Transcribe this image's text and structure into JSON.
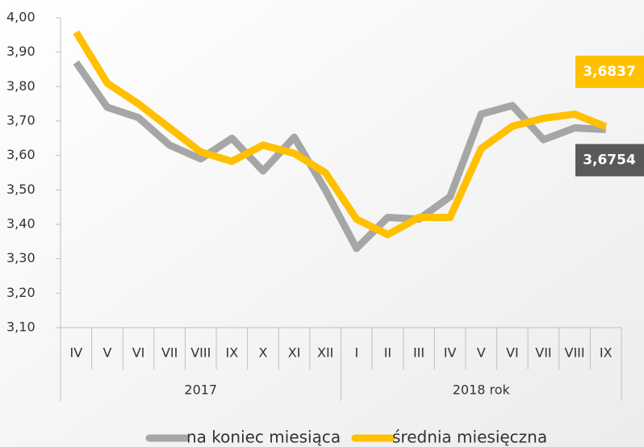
{
  "chart_data": {
    "type": "line",
    "categories": [
      "IV",
      "V",
      "VI",
      "VII",
      "VIII",
      "IX",
      "X",
      "XI",
      "XII",
      "I",
      "II",
      "III",
      "IV",
      "V",
      "VI",
      "VII",
      "VIII",
      "IX"
    ],
    "groups": [
      "2017",
      "2018 rok"
    ],
    "series": [
      {
        "name": "na koniec miesiąca",
        "color": "#a6a6a6",
        "values": [
          3.87,
          3.74,
          3.71,
          3.63,
          3.59,
          3.65,
          3.555,
          3.653,
          3.5,
          3.33,
          3.42,
          3.415,
          3.48,
          3.72,
          3.745,
          3.646,
          3.68,
          3.6754
        ],
        "value_labels": [
          null,
          null,
          null,
          null,
          null,
          null,
          null,
          null,
          null,
          null,
          null,
          null,
          null,
          null,
          null,
          null,
          null,
          "3,6754"
        ],
        "label_color": "#595959"
      },
      {
        "name": "średnia miesięczna",
        "color": "#ffc000",
        "values": [
          3.958,
          3.81,
          3.75,
          3.68,
          3.61,
          3.583,
          3.63,
          3.606,
          3.55,
          3.415,
          3.37,
          3.42,
          3.42,
          3.62,
          3.685,
          3.708,
          3.72,
          3.6837
        ],
        "value_labels": [
          null,
          null,
          null,
          null,
          null,
          null,
          null,
          null,
          null,
          null,
          null,
          null,
          null,
          null,
          null,
          null,
          null,
          "3,6837"
        ],
        "label_color": "#ffc000"
      }
    ],
    "ylim": [
      3.1,
      4.0
    ],
    "yticks": [
      {
        "value": 3.1,
        "label": "3,10"
      },
      {
        "value": 3.2,
        "label": "3,20"
      },
      {
        "value": 3.3,
        "label": "3,30"
      },
      {
        "value": 3.4,
        "label": "3,40"
      },
      {
        "value": 3.5,
        "label": "3,50"
      },
      {
        "value": 3.6,
        "label": "3,60"
      },
      {
        "value": 3.7,
        "label": "3,70"
      },
      {
        "value": 3.8,
        "label": "3,80"
      },
      {
        "value": 3.9,
        "label": "3,90"
      },
      {
        "value": 4.0,
        "label": "4,00"
      }
    ]
  }
}
